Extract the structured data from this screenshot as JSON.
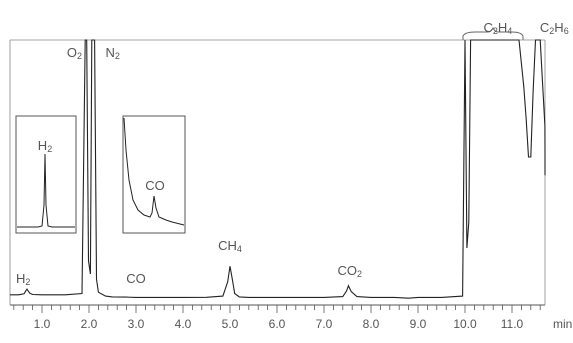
{
  "chart_data": {
    "type": "line",
    "title": "",
    "xlabel": "",
    "ylabel": "",
    "x_unit": "min",
    "xlim": [
      0,
      12.1
    ],
    "x_ticks": [
      1.0,
      2.0,
      3.0,
      4.0,
      5.0,
      6.0,
      7.0,
      8.0,
      9.0,
      10.0,
      11.0
    ],
    "x_tick_labels": [
      "1.0",
      "2.0",
      "3.0",
      "4.0",
      "5.0",
      "6.0",
      "7.0",
      "8.0",
      "9.0",
      "10.0",
      "11.0"
    ],
    "grid": false,
    "line_color": "#222222",
    "series": [
      {
        "x": [
          0.0,
          0.5,
          0.62,
          0.66,
          0.68,
          0.7,
          0.74,
          0.8,
          1.0,
          1.5,
          1.85,
          1.92,
          1.95,
          1.99,
          2.03,
          2.06,
          2.08,
          2.12,
          2.16,
          2.2,
          2.35,
          2.5,
          2.8,
          3.0,
          4.0,
          4.5,
          4.85,
          4.95,
          5.0,
          5.05,
          5.1,
          5.2,
          5.4,
          6.0,
          7.0,
          7.4,
          7.48,
          7.52,
          7.58,
          7.7,
          8.0,
          8.5,
          8.8,
          9.0,
          9.5,
          9.95,
          10.0,
          10.04,
          10.08,
          10.12,
          10.2,
          10.3,
          10.5,
          11.0,
          11.15,
          11.25,
          11.3,
          11.35,
          11.4,
          11.45,
          11.5,
          11.6,
          11.7,
          11.8,
          12.1
        ],
        "y": [
          2.0,
          2.0,
          2.4,
          3.6,
          4.2,
          3.6,
          2.6,
          2.1,
          2.0,
          2.0,
          2.5,
          100,
          100,
          15,
          10,
          100,
          100,
          100,
          8,
          3,
          1.5,
          1.2,
          1.1,
          1.0,
          1.0,
          1.05,
          1.5,
          7,
          13,
          8,
          2.5,
          1.2,
          1.0,
          1.0,
          1.0,
          1.3,
          3.5,
          5.5,
          3.2,
          1.3,
          1.0,
          1.0,
          0.7,
          1.0,
          1.0,
          1.5,
          100,
          20,
          30,
          100,
          100,
          100,
          100,
          100,
          100,
          82,
          70,
          55,
          55,
          80,
          100,
          100,
          67,
          56,
          48
        ]
      }
    ],
    "labels": [
      {
        "text": "O",
        "sub": "2",
        "x": 1.85
      },
      {
        "text": "N",
        "sub": "2",
        "x": 2.35
      },
      {
        "text": "H",
        "sub": "2",
        "x": 0.6
      },
      {
        "text": "CO",
        "sub": "",
        "x": 3.0
      },
      {
        "text": "CH",
        "sub": "4",
        "x": 5.0
      },
      {
        "text": "CO",
        "sub": "2",
        "x": 7.55
      },
      {
        "text": "C",
        "sub": "2",
        "text2": "H",
        "sub2": "4",
        "x": 10.7
      },
      {
        "text": "C",
        "sub": "2",
        "text2": "H",
        "sub2": "6",
        "x": 11.9
      }
    ],
    "insets": [
      {
        "label_text": "H",
        "label_sub": "2"
      },
      {
        "label_text": "CO",
        "label_sub": ""
      }
    ]
  }
}
